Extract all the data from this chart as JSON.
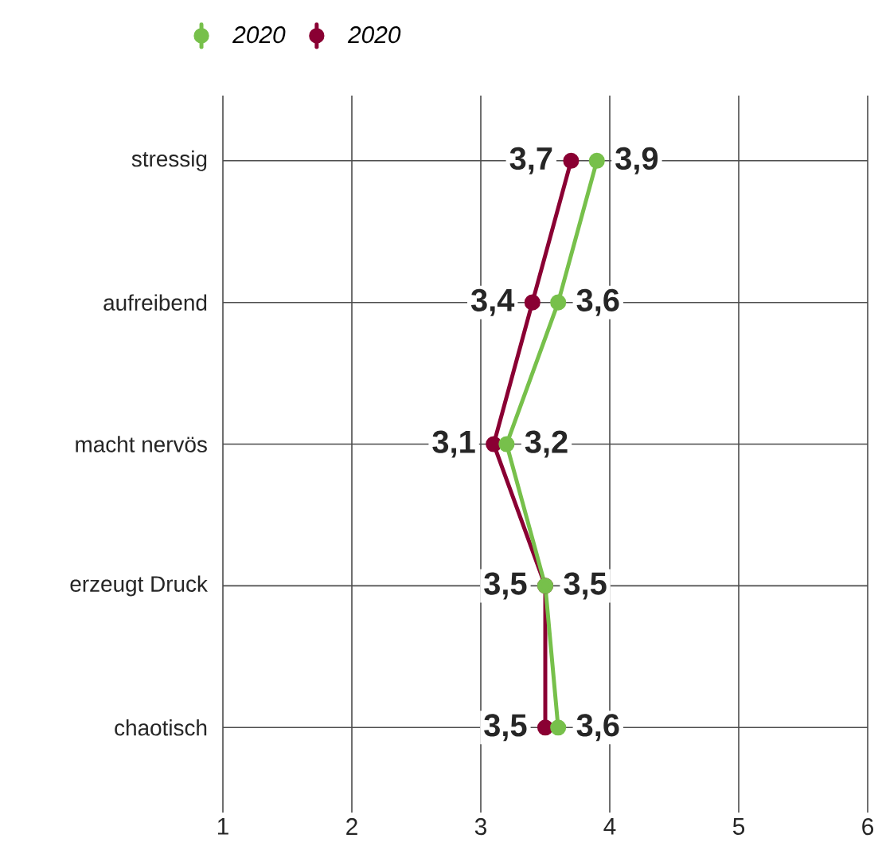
{
  "chart_data": {
    "type": "line",
    "orientation": "horizontal",
    "categories": [
      "stressig",
      "aufreibend",
      "macht nervös",
      "erzeugt Druck",
      "chaotisch"
    ],
    "series": [
      {
        "name": "2020",
        "color": "#77c04b",
        "values": [
          3.9,
          3.6,
          3.2,
          3.5,
          3.6
        ],
        "value_labels": [
          "3,9",
          "3,6",
          "3,2",
          "3,5",
          "3,6"
        ]
      },
      {
        "name": "2020",
        "color": "#8a0033",
        "values": [
          3.7,
          3.4,
          3.1,
          3.5,
          3.5
        ],
        "value_labels": [
          "3,7",
          "3,4",
          "3,1",
          "3,5",
          "3,5"
        ]
      }
    ],
    "xlim": [
      1,
      6
    ],
    "xticks": [
      1,
      2,
      3,
      4,
      5,
      6
    ],
    "grid": true,
    "legend": "top left",
    "marker": "circle",
    "line_style": "solid"
  }
}
